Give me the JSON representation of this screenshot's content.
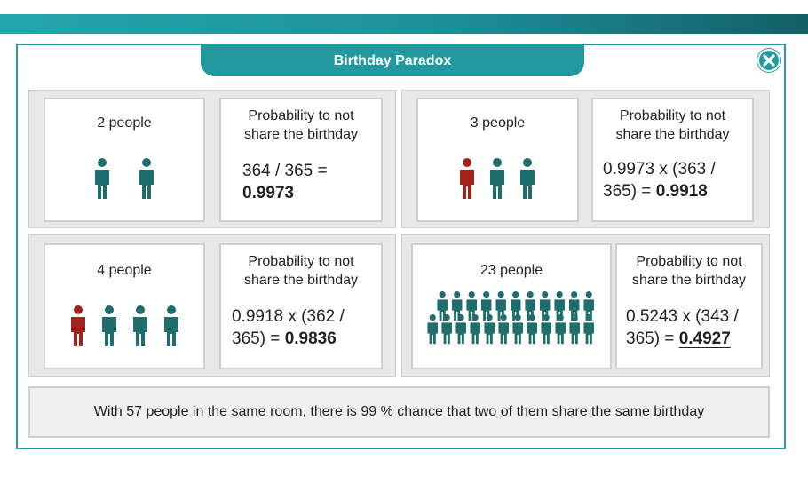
{
  "window": {
    "title": "Birthday Paradox"
  },
  "colors": {
    "teal": "#1e6e6e",
    "red": "#a3231c",
    "accent": "#22999f"
  },
  "scenarios": [
    {
      "people_label": "2 people",
      "prob_title_line1": "Probability to not",
      "prob_title_line2": "share the birthday",
      "formula_line1": "364 / 365 =",
      "formula_line2_prefix": "",
      "result": "0.9973",
      "figures": [
        "teal",
        "teal"
      ]
    },
    {
      "people_label": "3 people",
      "prob_title_line1": "Probability to not",
      "prob_title_line2": "share the birthday",
      "formula_line1": "0.9973 x (363 /",
      "formula_line2_prefix": "365) = ",
      "result": "0.9918",
      "figures": [
        "red",
        "teal",
        "teal"
      ]
    },
    {
      "people_label": "4 people",
      "prob_title_line1": "Probability to not",
      "prob_title_line2": "share the birthday",
      "formula_line1": "0.9918 x (362 /",
      "formula_line2_prefix": "365) = ",
      "result": "0.9836",
      "figures": [
        "red",
        "teal",
        "teal",
        "teal"
      ]
    },
    {
      "people_label": "23 people",
      "prob_title_line1": "Probability to not",
      "prob_title_line2": "share the birthday",
      "formula_line1": "0.5243 x (343 /",
      "formula_line2_prefix": "365) = ",
      "result": "0.4927",
      "figures_count": 23
    }
  ],
  "footer": {
    "text": "With 57 people in the same room, there is 99 % chance that two of them share the same birthday"
  },
  "icons": {
    "close": "close-x-icon",
    "person": "person-icon"
  }
}
